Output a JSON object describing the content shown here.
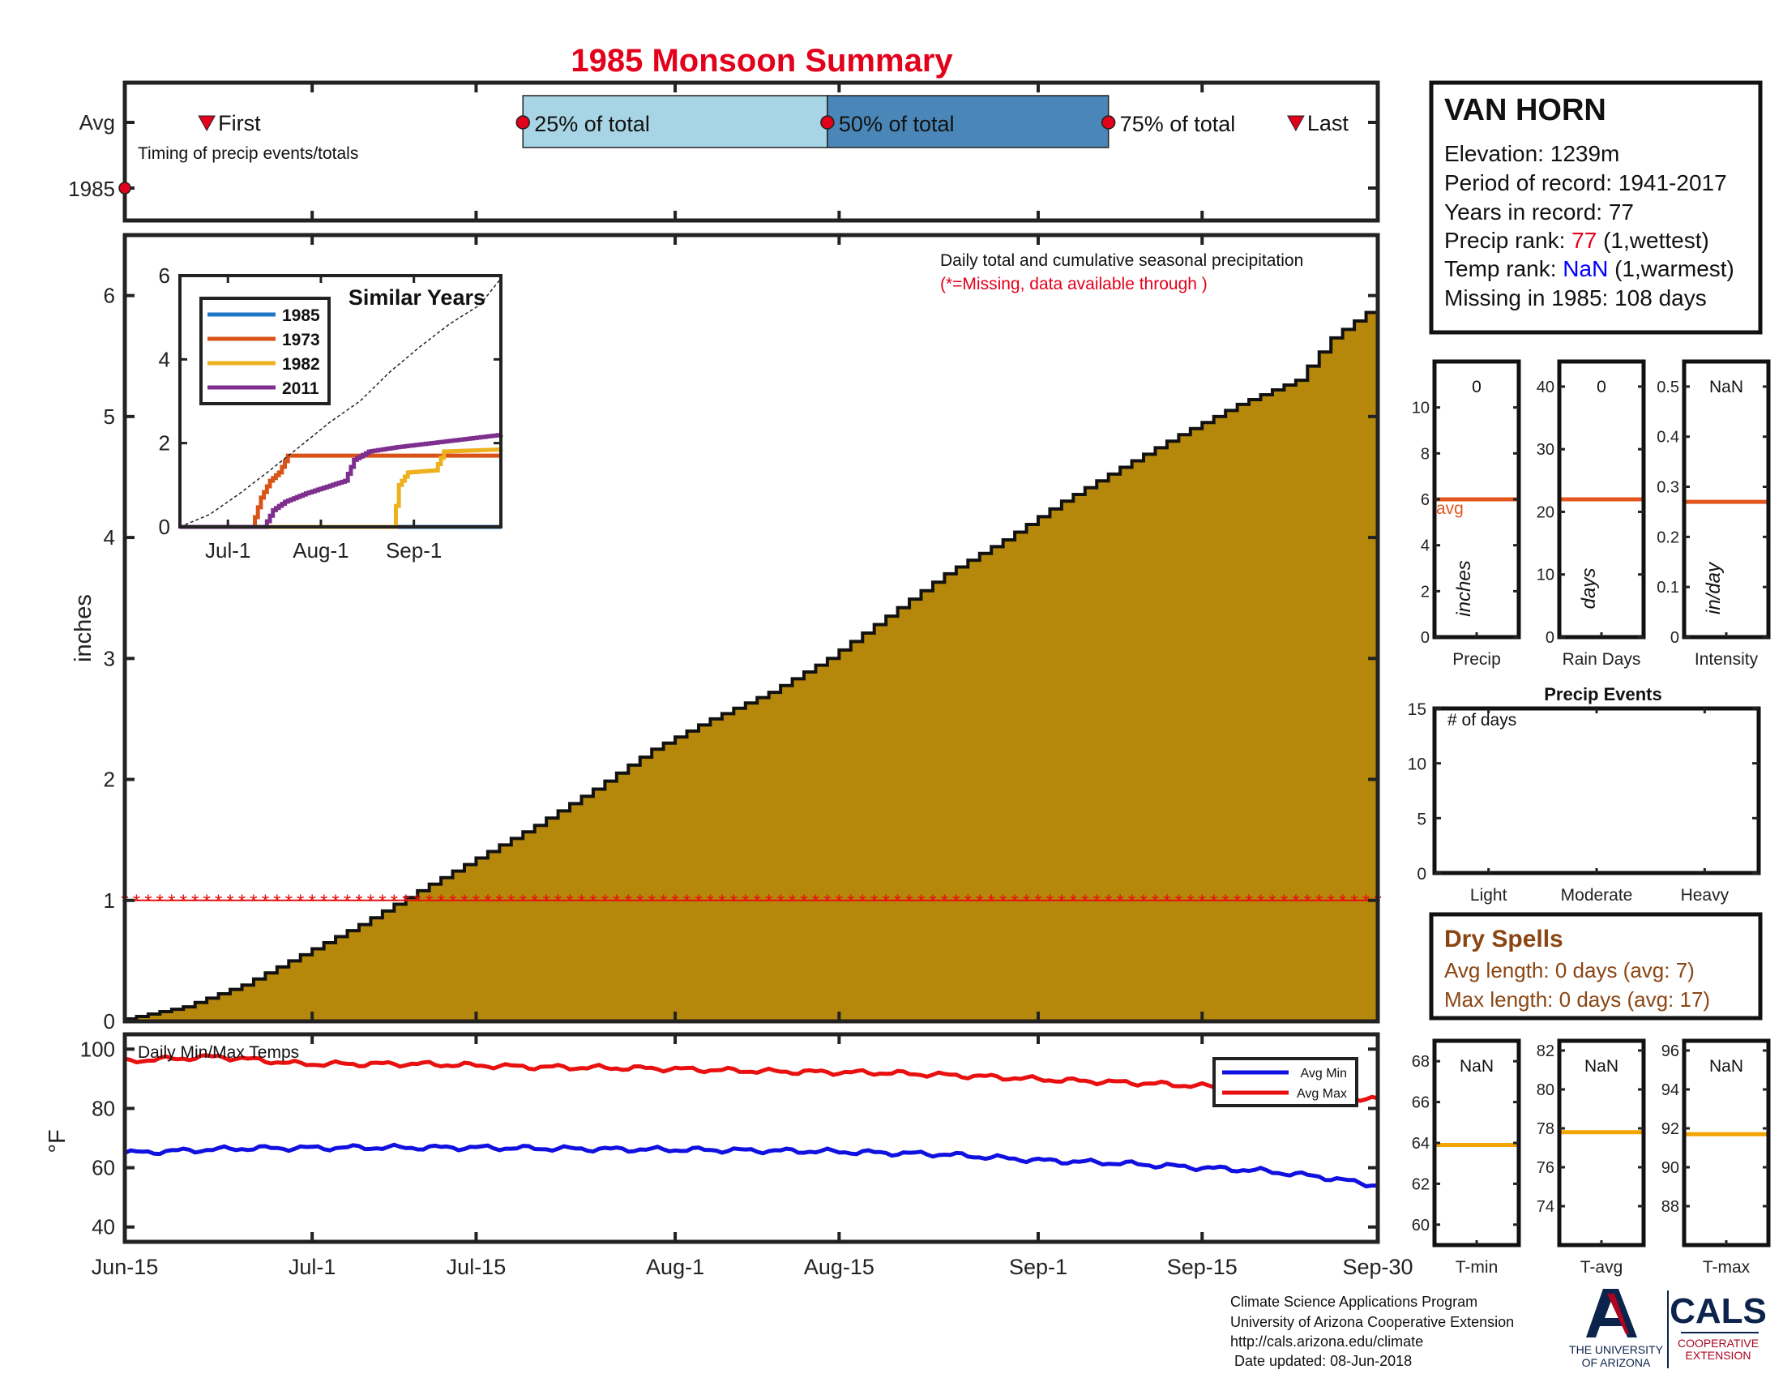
{
  "title": "1985 Monsoon Summary",
  "colors": {
    "title": "#e3001b",
    "fill": "#b5870a",
    "outline": "#111111",
    "light_blue": "#a8d5e5",
    "dark_blue": "#4a86b8",
    "avg_line": "#e3571e",
    "temp_avg_line": "#f2a400",
    "min_line": "#1010e0",
    "max_line": "#e81010",
    "missing": "#e81010",
    "nan_blue": "#0000ff",
    "dry_brown": "#8b4513",
    "s1985": "#1f77c4",
    "s1973": "#d95319",
    "s1982": "#edb120",
    "s2011": "#7e2f8e"
  },
  "timing": {
    "avg_label": "Avg",
    "year_label": "1985",
    "caption": "Timing of precip events/totals",
    "first_label": "First",
    "p25_label": "25% of total",
    "p50_label": "50% of total",
    "p75_label": "75% of total",
    "last_label": "Last",
    "x_range_days": [
      0,
      107
    ],
    "first_day": 7,
    "p25_day": 34,
    "p50_day": 60,
    "p75_day": 84,
    "last_day": 100,
    "year_marker_day": 0
  },
  "station": {
    "name": "VAN HORN",
    "elevation": "Elevation: 1239m",
    "period": "Period of record: 1941-2017",
    "years": "Years in record: 77",
    "precip_rank_prefix": "Precip rank: ",
    "precip_rank_value": "77",
    "precip_rank_suffix": " (1,wettest)",
    "temp_rank_prefix": "Temp rank: ",
    "temp_rank_value": "NaN",
    "temp_rank_suffix": " (1,warmest)",
    "missing": "Missing in 1985: 108 days"
  },
  "chart_data": [
    {
      "id": "cumulative-precip",
      "type": "area",
      "title": "Daily total and cumulative seasonal precipitation",
      "subtitle": "(*=Missing, data available through )",
      "ylabel": "inches",
      "ylim": [
        0,
        6.5
      ],
      "yticks": [
        0,
        1,
        2,
        3,
        4,
        5,
        6
      ],
      "x_range_days": [
        0,
        107
      ],
      "xticks": [
        {
          "day": 0,
          "label": "Jun-15"
        },
        {
          "day": 16,
          "label": "Jul-1"
        },
        {
          "day": 30,
          "label": "Jul-15"
        },
        {
          "day": 47,
          "label": "Aug-1"
        },
        {
          "day": 61,
          "label": "Aug-15"
        },
        {
          "day": 78,
          "label": "Sep-1"
        },
        {
          "day": 92,
          "label": "Sep-15"
        },
        {
          "day": 107,
          "label": "Sep-30"
        }
      ],
      "cumulative_avg_points": [
        [
          0,
          0.02
        ],
        [
          5,
          0.12
        ],
        [
          10,
          0.3
        ],
        [
          15,
          0.55
        ],
        [
          20,
          0.8
        ],
        [
          25,
          1.08
        ],
        [
          30,
          1.35
        ],
        [
          35,
          1.62
        ],
        [
          40,
          1.92
        ],
        [
          45,
          2.25
        ],
        [
          50,
          2.5
        ],
        [
          55,
          2.72
        ],
        [
          60,
          3.0
        ],
        [
          65,
          3.35
        ],
        [
          70,
          3.7
        ],
        [
          75,
          3.98
        ],
        [
          80,
          4.3
        ],
        [
          85,
          4.58
        ],
        [
          90,
          4.85
        ],
        [
          95,
          5.1
        ],
        [
          100,
          5.3
        ],
        [
          103,
          5.65
        ],
        [
          107,
          5.93
        ]
      ],
      "missing_level": 1.0,
      "missing_days": "all"
    },
    {
      "id": "similar-years",
      "type": "line",
      "title": "Similar Years",
      "ylim": [
        0,
        6
      ],
      "yticks": [
        0,
        2,
        4,
        6
      ],
      "x_range_days": [
        0,
        107
      ],
      "xticks": [
        {
          "day": 16,
          "label": "Jul-1"
        },
        {
          "day": 47,
          "label": "Aug-1"
        },
        {
          "day": 78,
          "label": "Sep-1"
        }
      ],
      "series": [
        {
          "name": "1985",
          "points": [
            [
              0,
              0
            ],
            [
              107,
              0
            ]
          ]
        },
        {
          "name": "1973",
          "points": [
            [
              0,
              0
            ],
            [
              24,
              0
            ],
            [
              27,
              0.7
            ],
            [
              30,
              1.1
            ],
            [
              33,
              1.3
            ],
            [
              36,
              1.7
            ],
            [
              43,
              1.7
            ],
            [
              107,
              1.7
            ]
          ]
        },
        {
          "name": "1982",
          "points": [
            [
              0,
              0
            ],
            [
              71,
              0
            ],
            [
              73,
              1.0
            ],
            [
              76,
              1.3
            ],
            [
              85,
              1.35
            ],
            [
              88,
              1.8
            ],
            [
              107,
              1.85
            ]
          ]
        },
        {
          "name": "2011",
          "points": [
            [
              0,
              0
            ],
            [
              28,
              0
            ],
            [
              31,
              0.4
            ],
            [
              35,
              0.6
            ],
            [
              42,
              0.8
            ],
            [
              55,
              1.1
            ],
            [
              58,
              1.6
            ],
            [
              63,
              1.8
            ],
            [
              72,
              1.9
            ],
            [
              107,
              2.2
            ]
          ]
        },
        {
          "name": "",
          "style": "dashed",
          "points": [
            [
              0,
              0
            ],
            [
              10,
              0.3
            ],
            [
              20,
              0.8
            ],
            [
              30,
              1.35
            ],
            [
              40,
              1.92
            ],
            [
              50,
              2.5
            ],
            [
              60,
              3.0
            ],
            [
              70,
              3.7
            ],
            [
              80,
              4.3
            ],
            [
              90,
              4.85
            ],
            [
              100,
              5.3
            ],
            [
              107,
              5.93
            ]
          ]
        }
      ]
    },
    {
      "id": "daily-temps",
      "type": "line",
      "title": "Daily Min/Max Temps",
      "ylabel": "°F",
      "ylim": [
        35,
        105
      ],
      "yticks": [
        40,
        60,
        80,
        100
      ],
      "x_range_days": [
        0,
        107
      ],
      "series": [
        {
          "name": "Avg Min",
          "points": [
            [
              0,
              65
            ],
            [
              10,
              66.5
            ],
            [
              20,
              66.8
            ],
            [
              30,
              66.8
            ],
            [
              40,
              66.3
            ],
            [
              50,
              66
            ],
            [
              60,
              65.5
            ],
            [
              70,
              64.5
            ],
            [
              78,
              62.5
            ],
            [
              85,
              61.5
            ],
            [
              92,
              60
            ],
            [
              97,
              59
            ],
            [
              102,
              57
            ],
            [
              107,
              54
            ]
          ]
        },
        {
          "name": "Avg Max",
          "points": [
            [
              0,
              96
            ],
            [
              8,
              97.5
            ],
            [
              15,
              95
            ],
            [
              25,
              95
            ],
            [
              35,
              94
            ],
            [
              45,
              93.5
            ],
            [
              55,
              92.5
            ],
            [
              65,
              92
            ],
            [
              72,
              91
            ],
            [
              80,
              89.5
            ],
            [
              87,
              88.5
            ],
            [
              95,
              87
            ],
            [
              102,
              84
            ],
            [
              107,
              83
            ]
          ]
        }
      ]
    },
    {
      "id": "precip-bar",
      "type": "bar",
      "xlabel": "Precip",
      "ylim": [
        0,
        12
      ],
      "yticks": [
        0,
        2,
        4,
        6,
        8,
        10
      ],
      "value_label": "0",
      "avg": 6,
      "avg_label": "avg",
      "unit_label": "inches"
    },
    {
      "id": "rain-days-bar",
      "type": "bar",
      "xlabel": "Rain Days",
      "ylim": [
        0,
        44
      ],
      "yticks": [
        0,
        10,
        20,
        30,
        40
      ],
      "value_label": "0",
      "avg": 22,
      "unit_label": "days"
    },
    {
      "id": "intensity-bar",
      "type": "bar",
      "xlabel": "Intensity",
      "ylim": [
        0,
        0.55
      ],
      "yticks": [
        0,
        0.1,
        0.2,
        0.3,
        0.4,
        0.5
      ],
      "value_label": "NaN",
      "avg": 0.27,
      "unit_label": "in/day"
    },
    {
      "id": "precip-events",
      "type": "bar",
      "title": "Precip Events",
      "ylabel": "# of days",
      "categories": [
        "Light",
        "Moderate",
        "Heavy"
      ],
      "values": [
        0,
        0,
        0
      ],
      "ylim": [
        0,
        15
      ],
      "yticks": [
        0,
        5,
        10,
        15
      ]
    },
    {
      "id": "tmin-bar",
      "type": "bar",
      "xlabel": "T-min",
      "ylim": [
        59,
        69
      ],
      "yticks": [
        60,
        62,
        64,
        66,
        68
      ],
      "value_label": "NaN",
      "avg": 63.9
    },
    {
      "id": "tavg-bar",
      "type": "bar",
      "xlabel": "T-avg",
      "ylim": [
        72,
        82.5
      ],
      "yticks": [
        74,
        76,
        78,
        80,
        82
      ],
      "value_label": "NaN",
      "avg": 77.8
    },
    {
      "id": "tmax-bar",
      "type": "bar",
      "xlabel": "T-max",
      "ylim": [
        86,
        96.5
      ],
      "yticks": [
        88,
        90,
        92,
        94,
        96
      ],
      "value_label": "NaN",
      "avg": 91.7
    }
  ],
  "dry_spells": {
    "title": "Dry Spells",
    "avg": "Avg length: 0 days (avg: 7)",
    "max": "Max length: 0 days (avg: 17)"
  },
  "footer": {
    "line1": "Climate Science Applications Program",
    "line2": "University of Arizona Cooperative Extension",
    "line3": "http://cals.arizona.edu/climate",
    "line4": " Date updated: 08-Jun-2018",
    "ua_letter": "A",
    "ua_text1": "THE UNIVERSITY",
    "ua_text2": "OF ARIZONA",
    "cals_text": "CALS",
    "cals_sub1": "COOPERATIVE",
    "cals_sub2": "EXTENSION"
  }
}
